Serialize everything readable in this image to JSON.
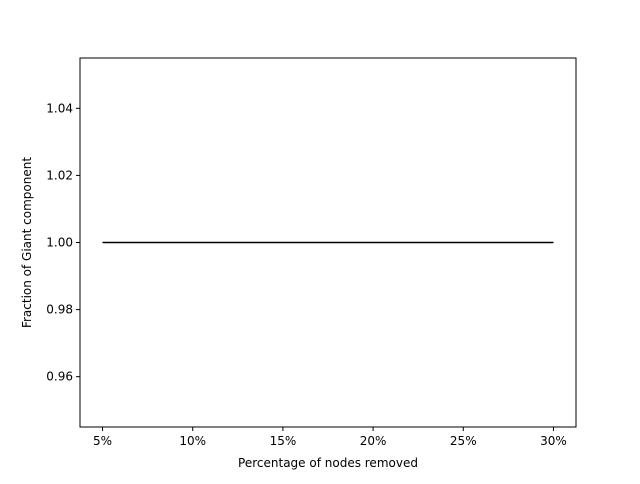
{
  "chart_data": {
    "type": "line",
    "title": "",
    "xlabel": "Percentage of nodes removed",
    "ylabel": "Fraction of Giant component",
    "x": [
      5,
      10,
      15,
      20,
      25,
      30
    ],
    "x_tick_labels": [
      "5%",
      "10%",
      "15%",
      "20%",
      "25%",
      "30%"
    ],
    "xlim": [
      3.75,
      31.25
    ],
    "ylim": [
      0.945,
      1.055
    ],
    "y_ticks": [
      0.96,
      0.98,
      1.0,
      1.02,
      1.04
    ],
    "y_tick_labels": [
      "0.96",
      "0.98",
      "1.00",
      "1.02",
      "1.04"
    ],
    "series": [
      {
        "values": [
          1.0,
          1.0,
          1.0,
          1.0,
          1.0,
          1.0
        ],
        "color": "#000000"
      }
    ],
    "grid": false,
    "legend": "none"
  }
}
